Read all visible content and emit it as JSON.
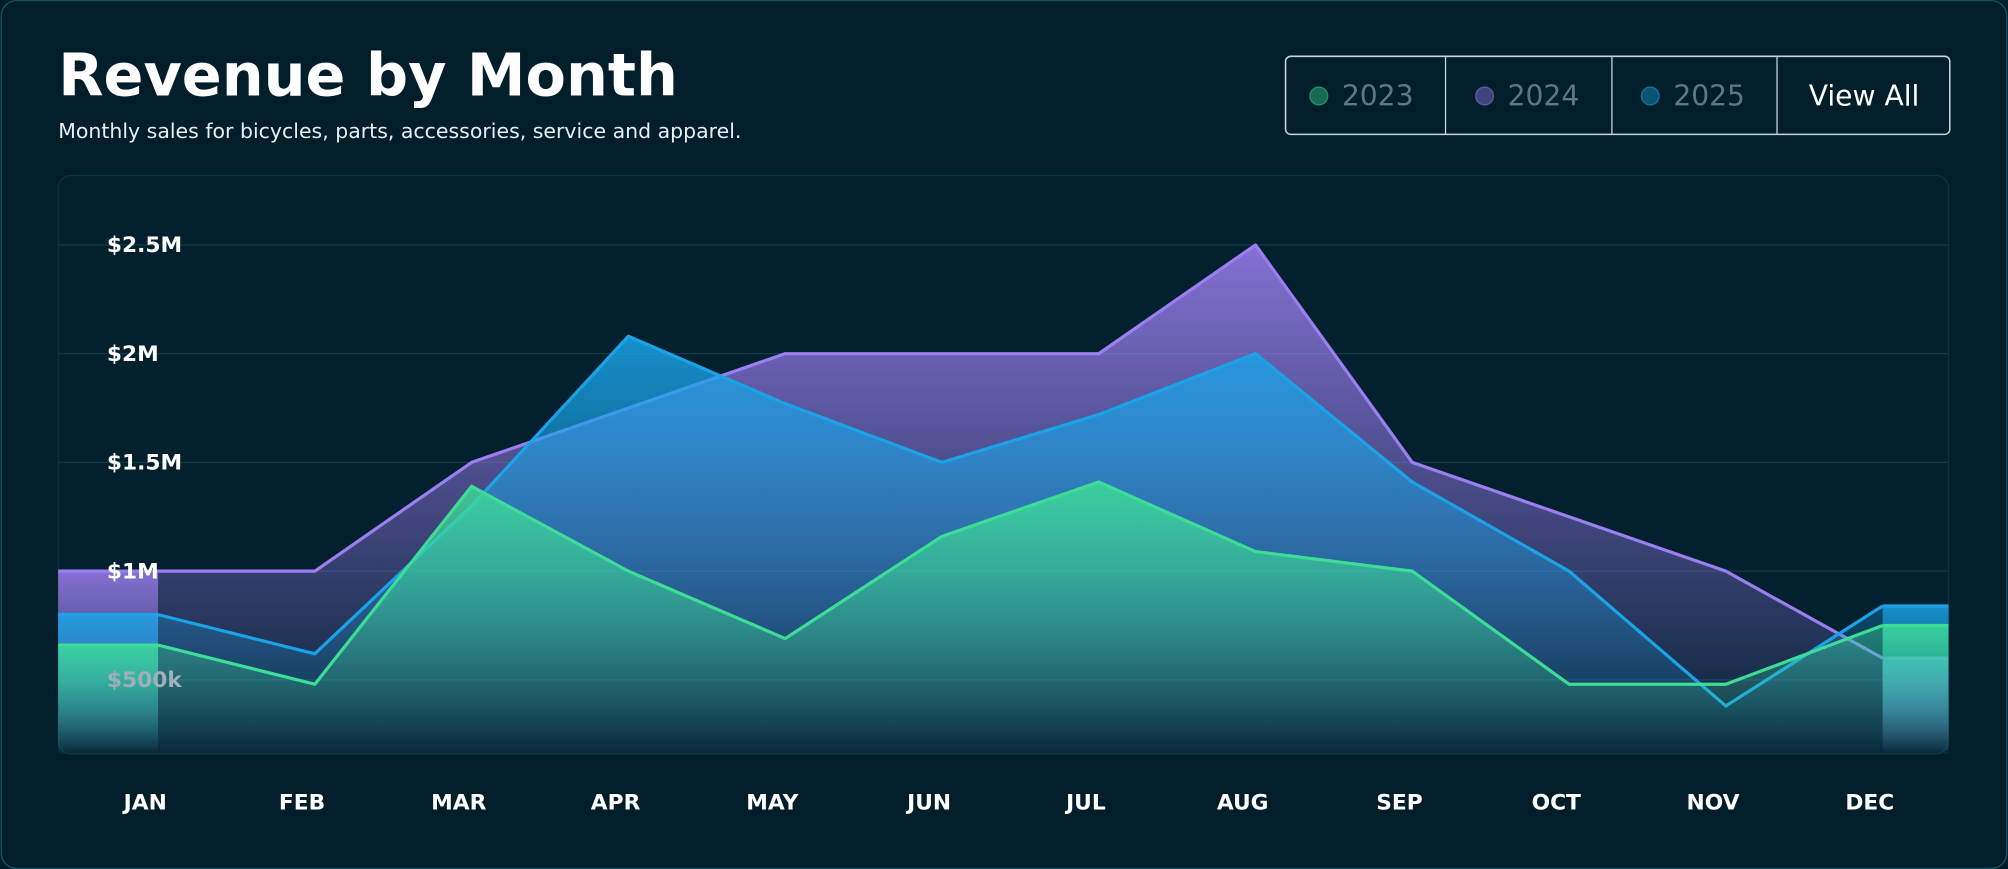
{
  "chart_data": {
    "type": "area",
    "title": "Revenue by Month",
    "subtitle": "Monthly sales for bicycles, parts, accessories, service and apparel.",
    "categories": [
      "JAN",
      "FEB",
      "MAR",
      "APR",
      "MAY",
      "JUN",
      "JUL",
      "AUG",
      "SEP",
      "OCT",
      "NOV",
      "DEC"
    ],
    "series": [
      {
        "name": "2024",
        "color": "#9b7ff0",
        "values": [
          1000000,
          1000000,
          1500000,
          1750000,
          2000000,
          2000000,
          2000000,
          2500000,
          1500000,
          1250000,
          1000000,
          600000
        ]
      },
      {
        "name": "2025",
        "color": "#1aa3e6",
        "values": [
          800000,
          620000,
          1300000,
          2080000,
          1770000,
          1500000,
          1720000,
          2000000,
          1410000,
          1000000,
          380000,
          840000
        ]
      },
      {
        "name": "2023",
        "color": "#3ddc97",
        "values": [
          660000,
          480000,
          1390000,
          1000000,
          690000,
          1160000,
          1410000,
          1090000,
          1000000,
          480000,
          480000,
          750000
        ]
      }
    ],
    "legend_order": [
      "2023",
      "2024",
      "2025"
    ],
    "ylim": [
      160000,
      2820000
    ],
    "yticks": [
      {
        "value": 500000,
        "label": "$500k"
      },
      {
        "value": 1000000,
        "label": "$1M"
      },
      {
        "value": 1500000,
        "label": "$1.5M"
      },
      {
        "value": 2000000,
        "label": "$2M"
      },
      {
        "value": 2500000,
        "label": "$2.5M"
      }
    ],
    "grid": true
  },
  "controls": {
    "view_all": "View All"
  }
}
